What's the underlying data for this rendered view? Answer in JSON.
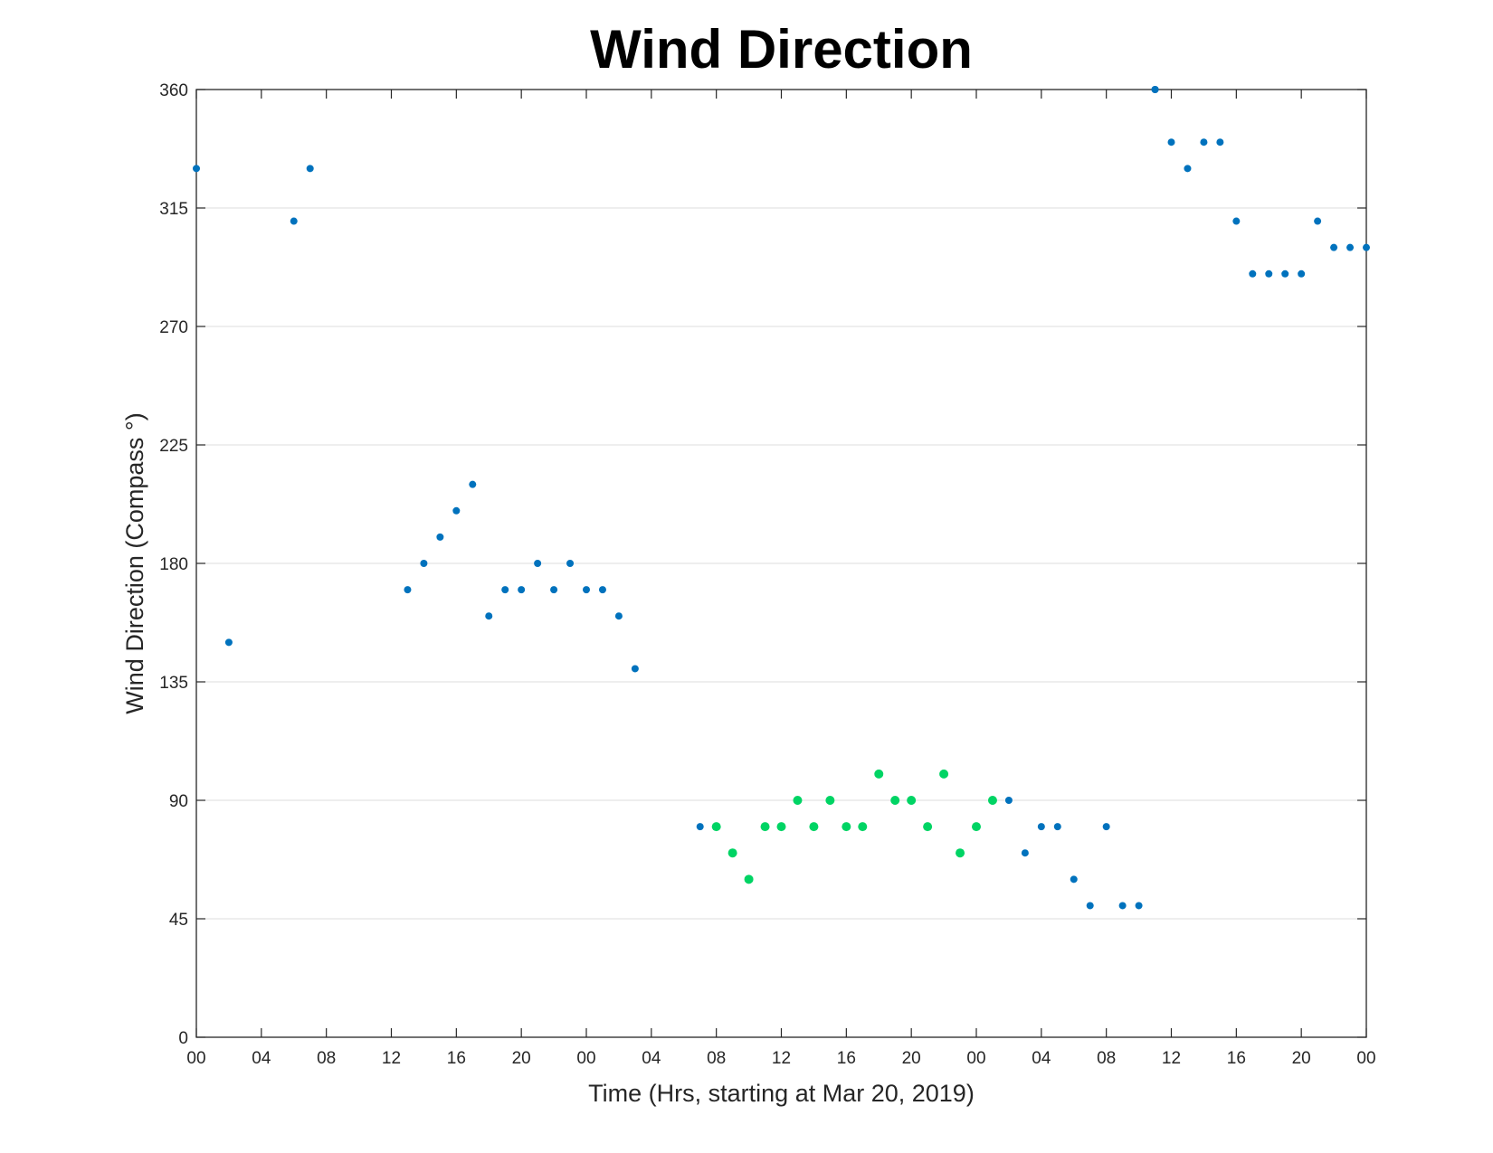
{
  "chart_data": {
    "type": "scatter",
    "title": "Wind Direction",
    "xlabel": "Time (Hrs, starting at Mar 20, 2019)",
    "ylabel": "Wind Direction (Compass °)",
    "xlim": [
      0,
      72
    ],
    "ylim": [
      0,
      360
    ],
    "x_ticks": [
      0,
      4,
      8,
      12,
      16,
      20,
      24,
      28,
      32,
      36,
      40,
      44,
      48,
      52,
      56,
      60,
      64,
      68,
      72
    ],
    "x_tick_labels": [
      "00",
      "04",
      "08",
      "12",
      "16",
      "20",
      "00",
      "04",
      "08",
      "12",
      "16",
      "20",
      "00",
      "04",
      "08",
      "12",
      "16",
      "20",
      "00"
    ],
    "y_ticks": [
      0,
      45,
      90,
      135,
      180,
      225,
      270,
      315,
      360
    ],
    "y_tick_labels": [
      "0",
      "45",
      "90",
      "135",
      "180",
      "225",
      "270",
      "315",
      "360"
    ],
    "grid": "horizontal",
    "legend": "none",
    "colors": {
      "blue": "#0072bd",
      "green": "#00d464",
      "axis": "#262626",
      "grid": "#dcdcdc"
    },
    "series": [
      {
        "color": "#0072bd",
        "x": [
          0,
          2,
          6,
          7,
          13,
          14,
          15,
          16,
          17,
          18,
          19,
          20,
          21,
          22,
          23,
          24,
          25,
          26,
          27,
          31,
          50,
          51,
          52,
          53,
          54,
          55,
          56,
          57,
          58,
          59,
          59,
          60,
          61,
          62,
          63,
          64,
          65,
          66,
          67,
          68,
          69,
          70,
          71,
          72
        ],
        "y": [
          330,
          150,
          310,
          330,
          170,
          180,
          190,
          200,
          210,
          160,
          170,
          170,
          180,
          170,
          180,
          170,
          170,
          160,
          140,
          80,
          90,
          70,
          80,
          80,
          60,
          50,
          80,
          50,
          50,
          360,
          360,
          340,
          330,
          340,
          340,
          310,
          290,
          290,
          290,
          290,
          310,
          300,
          300,
          300
        ]
      },
      {
        "color": "#00d464",
        "x": [
          32,
          33,
          34,
          35,
          36,
          37,
          38,
          39,
          40,
          41,
          42,
          43,
          44,
          45,
          46,
          47,
          48,
          49
        ],
        "y": [
          80,
          70,
          60,
          80,
          80,
          90,
          80,
          90,
          80,
          80,
          100,
          90,
          90,
          80,
          100,
          70,
          80,
          90
        ]
      }
    ]
  }
}
